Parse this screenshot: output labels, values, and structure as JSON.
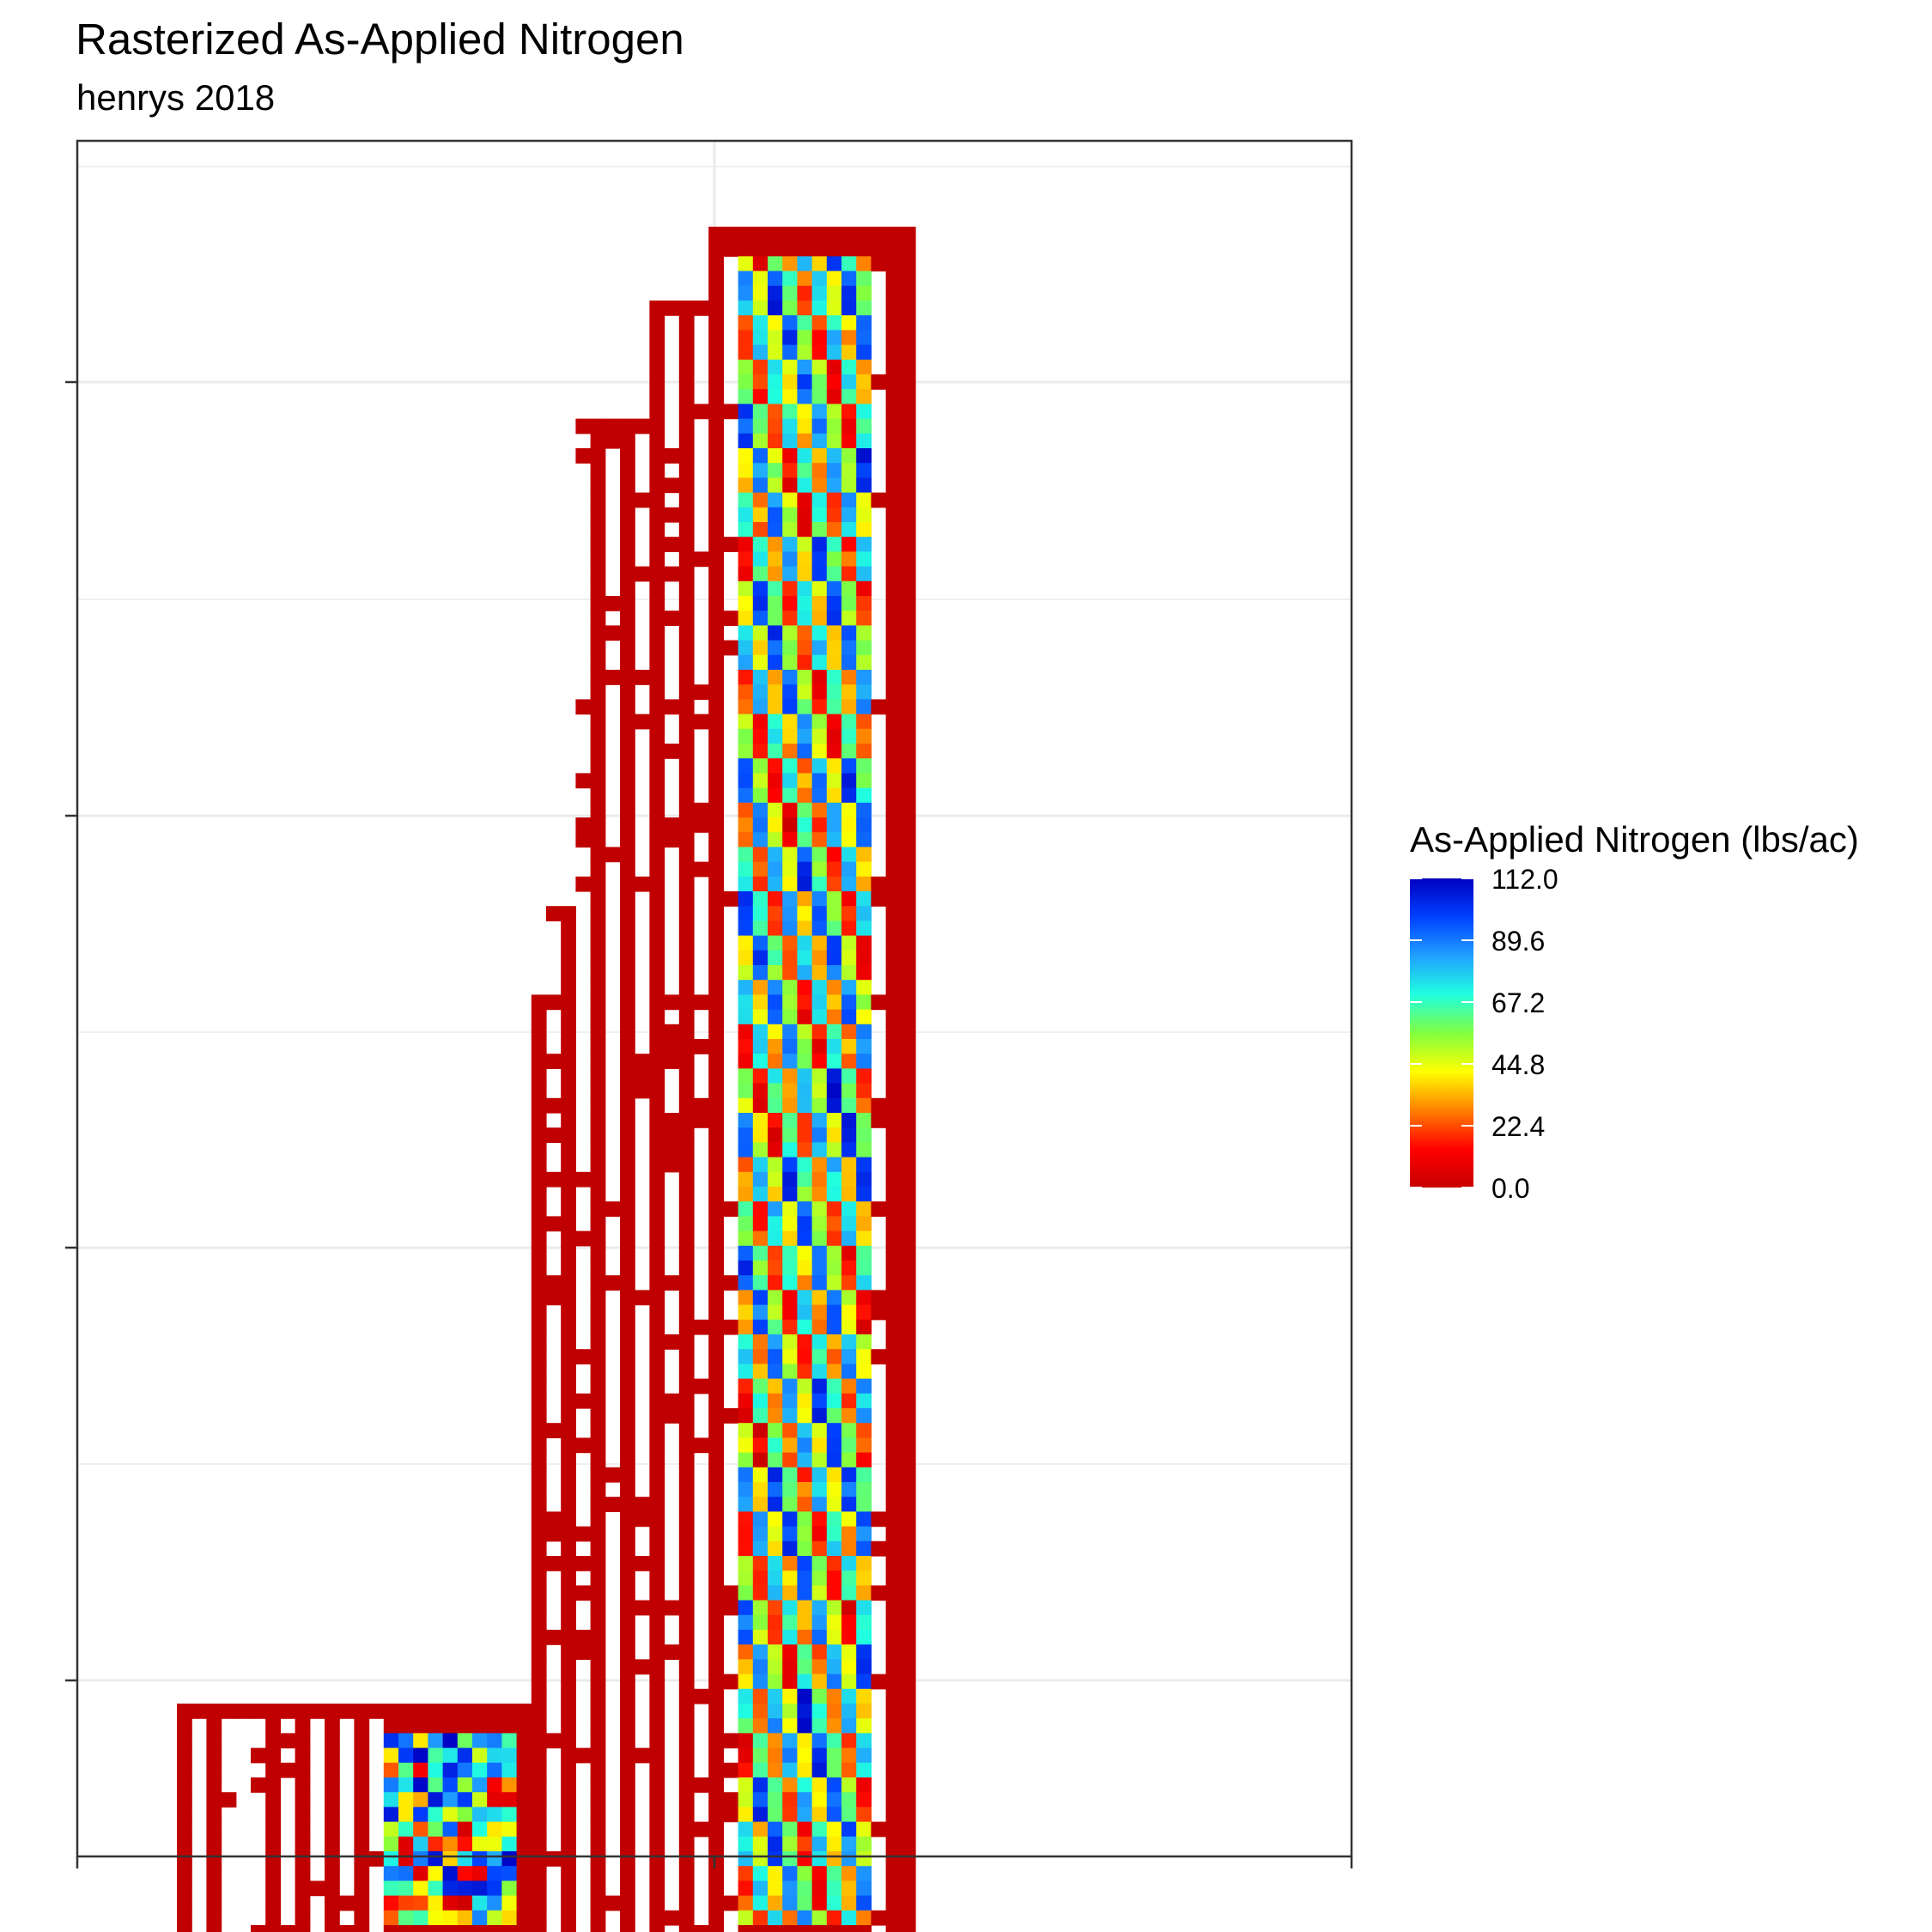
{
  "chart_data": {
    "type": "heatmap",
    "title": "Rasterized As-Applied Nitrogen",
    "subtitle": "henrys 2018",
    "xlabel": "",
    "ylabel": "",
    "grid": true,
    "legend": {
      "title": "As-Applied Nitrogen (lbs/ac)",
      "placement": "right",
      "min": 0.0,
      "max": 112.0,
      "labels": [
        "112.0",
        "89.6",
        "67.2",
        "44.8",
        "22.4",
        "0.0"
      ],
      "colors": [
        "#c80000",
        "#ff0000",
        "#ff8000",
        "#ffff00",
        "#80ff40",
        "#20ffe0",
        "#20a0ff",
        "#0040ff",
        "#0000c0"
      ]
    },
    "colors": {
      "zero": "#c00000",
      "panel_background": "#ffffff",
      "grid": "#ebebeb",
      "border": "#333333"
    }
  }
}
